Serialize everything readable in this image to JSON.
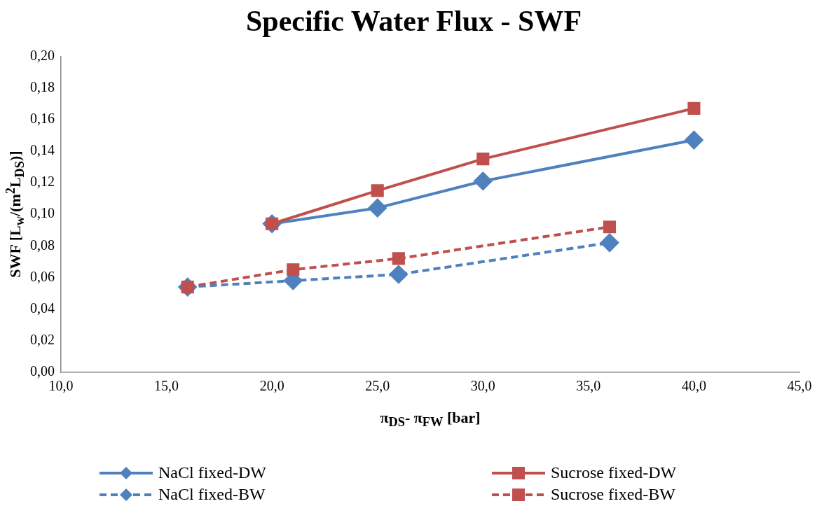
{
  "chart_data": {
    "type": "line",
    "title": "Specific Water Flux - SWF",
    "xlabel": "π$_{DS}$- π$_{FW}$ [bar]",
    "ylabel": "SWF [L$_{w}$/(m$^{2}$L$_{DS}$)]",
    "xlim": [
      10,
      45
    ],
    "xticks": [
      {
        "value": 10,
        "label": "10,0"
      },
      {
        "value": 15,
        "label": "15,0"
      },
      {
        "value": 20,
        "label": "20,0"
      },
      {
        "value": 25,
        "label": "25,0"
      },
      {
        "value": 30,
        "label": "30,0"
      },
      {
        "value": 35,
        "label": "35,0"
      },
      {
        "value": 40,
        "label": "40,0"
      },
      {
        "value": 45,
        "label": "45,0"
      }
    ],
    "ylim": [
      0,
      0.2
    ],
    "yticks": [
      {
        "value": 0,
        "label": "0,00"
      },
      {
        "value": 0.02,
        "label": "0,02"
      },
      {
        "value": 0.04,
        "label": "0,04"
      },
      {
        "value": 0.06,
        "label": "0,06"
      },
      {
        "value": 0.08,
        "label": "0,08"
      },
      {
        "value": 0.1,
        "label": "0,10"
      },
      {
        "value": 0.12,
        "label": "0,12"
      },
      {
        "value": 0.14,
        "label": "0,14"
      },
      {
        "value": 0.16,
        "label": "0,16"
      },
      {
        "value": 0.18,
        "label": "0,18"
      },
      {
        "value": 0.2,
        "label": "0,20"
      }
    ],
    "grid": false,
    "legend": "bottom",
    "series": [
      {
        "name": "NaCl fixed-DW",
        "color": "#4f81bd",
        "marker": "diamond",
        "line_style": "solid",
        "x": [
          20,
          25,
          30,
          40
        ],
        "values": [
          0.094,
          0.104,
          0.121,
          0.147
        ]
      },
      {
        "name": "Sucrose fixed-DW",
        "color": "#c0504d",
        "marker": "square",
        "line_style": "solid",
        "x": [
          20,
          25,
          30,
          40
        ],
        "values": [
          0.094,
          0.115,
          0.135,
          0.167
        ]
      },
      {
        "name": "NaCl fixed-BW",
        "color": "#4f81bd",
        "marker": "diamond",
        "line_style": "dashed",
        "x": [
          16,
          21,
          26,
          36
        ],
        "values": [
          0.054,
          0.058,
          0.062,
          0.082
        ]
      },
      {
        "name": "Sucrose fixed-BW",
        "color": "#c0504d",
        "marker": "square",
        "line_style": "dashed",
        "x": [
          16,
          21,
          26,
          36
        ],
        "values": [
          0.054,
          0.065,
          0.072,
          0.092
        ]
      }
    ]
  }
}
